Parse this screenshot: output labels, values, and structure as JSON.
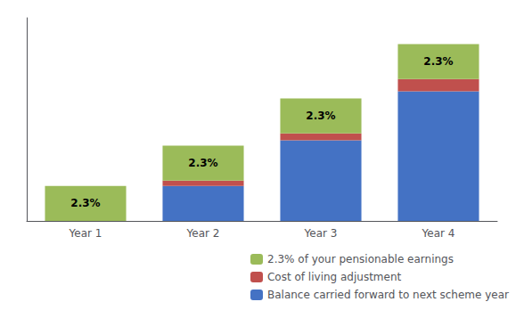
{
  "chart_data": {
    "type": "bar",
    "categories": [
      "Year 1",
      "Year 2",
      "Year 3",
      "Year 4"
    ],
    "series": [
      {
        "name": "Balance carried forward to next scheme year",
        "color": "#4472C4",
        "values": [
          0,
          1.0,
          2.3,
          3.7
        ]
      },
      {
        "name": "Cost of living adjustment",
        "color": "#C0504D",
        "values": [
          0,
          0.15,
          0.2,
          0.35
        ]
      },
      {
        "name": "2.3% of your pensionable earnings",
        "color": "#9BBB59",
        "values": [
          1.0,
          1.0,
          1.0,
          1.0
        ]
      }
    ],
    "stacked": true,
    "ylim": [
      0,
      5.8
    ],
    "yticks": [],
    "grid": false,
    "legend": "lower right",
    "tick_labels": "x",
    "annotations": [
      {
        "text": "2.3%",
        "category": "Year 1",
        "series": "2.3% of your pensionable earnings"
      },
      {
        "text": "2.3%",
        "category": "Year 2",
        "series": "2.3% of your pensionable earnings"
      },
      {
        "text": "2.3%",
        "category": "Year 3",
        "series": "2.3% of your pensionable earnings"
      },
      {
        "text": "2.3%",
        "category": "Year 4",
        "series": "2.3% of your pensionable earnings"
      }
    ]
  }
}
